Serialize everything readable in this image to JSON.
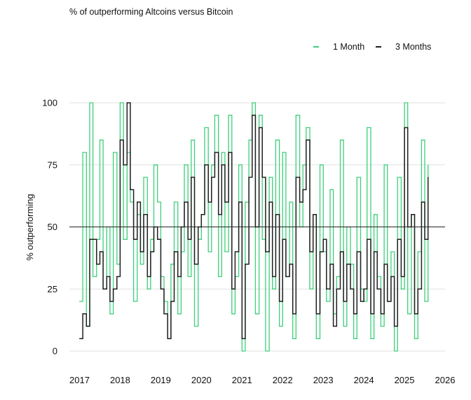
{
  "title": "% of outperforming Altcoins versus Bitcoin",
  "colors": {
    "one_month": "#3ecf7a",
    "three_months": "#1f1f1f",
    "grid": "#e2e2e2",
    "reference": "#222222"
  },
  "chart_data": {
    "type": "line",
    "title": "% of outperforming Altcoins versus Bitcoin",
    "xlabel": "",
    "ylabel": "% outperforming",
    "xlim": [
      2016.75,
      2026.0
    ],
    "ylim": [
      0,
      100
    ],
    "x_ticks": [
      2017,
      2018,
      2019,
      2020,
      2021,
      2022,
      2023,
      2024,
      2025,
      2026
    ],
    "y_ticks": [
      0,
      25,
      50,
      75,
      100
    ],
    "reference_line_y": 50,
    "grid": "horizontal",
    "legend_position": "top-right",
    "series": [
      {
        "name": "1 Month",
        "color": "#3ecf7a",
        "x": [
          2017.0,
          2017.08,
          2017.17,
          2017.25,
          2017.33,
          2017.42,
          2017.5,
          2017.58,
          2017.67,
          2017.75,
          2017.83,
          2017.92,
          2018.0,
          2018.08,
          2018.17,
          2018.25,
          2018.33,
          2018.42,
          2018.5,
          2018.58,
          2018.67,
          2018.75,
          2018.83,
          2018.92,
          2019.0,
          2019.08,
          2019.17,
          2019.25,
          2019.33,
          2019.42,
          2019.5,
          2019.58,
          2019.67,
          2019.75,
          2019.83,
          2019.92,
          2020.0,
          2020.08,
          2020.17,
          2020.25,
          2020.33,
          2020.42,
          2020.5,
          2020.58,
          2020.67,
          2020.75,
          2020.83,
          2020.92,
          2021.0,
          2021.08,
          2021.17,
          2021.25,
          2021.33,
          2021.42,
          2021.5,
          2021.58,
          2021.67,
          2021.75,
          2021.83,
          2021.92,
          2022.0,
          2022.08,
          2022.17,
          2022.25,
          2022.33,
          2022.42,
          2022.5,
          2022.58,
          2022.67,
          2022.75,
          2022.83,
          2022.92,
          2023.0,
          2023.08,
          2023.17,
          2023.25,
          2023.33,
          2023.42,
          2023.5,
          2023.58,
          2023.67,
          2023.75,
          2023.83,
          2023.92,
          2024.0,
          2024.08,
          2024.17,
          2024.25,
          2024.33,
          2024.42,
          2024.5,
          2024.58,
          2024.67,
          2024.75,
          2024.83,
          2024.92,
          2025.0,
          2025.08,
          2025.17,
          2025.25,
          2025.33,
          2025.42,
          2025.5,
          2025.58
        ],
        "values": [
          20,
          80,
          10,
          100,
          30,
          45,
          85,
          25,
          50,
          15,
          80,
          35,
          100,
          45,
          80,
          60,
          20,
          55,
          35,
          70,
          25,
          45,
          75,
          60,
          30,
          20,
          5,
          35,
          60,
          15,
          40,
          75,
          30,
          85,
          10,
          45,
          55,
          90,
          40,
          75,
          95,
          30,
          80,
          40,
          95,
          15,
          30,
          75,
          0,
          60,
          85,
          100,
          15,
          95,
          45,
          0,
          70,
          25,
          85,
          10,
          80,
          30,
          60,
          5,
          95,
          50,
          75,
          90,
          25,
          55,
          5,
          75,
          40,
          20,
          65,
          15,
          30,
          85,
          10,
          50,
          35,
          5,
          70,
          25,
          20,
          90,
          5,
          55,
          30,
          10,
          75,
          20,
          40,
          0,
          70,
          25,
          100,
          15,
          55,
          5,
          40,
          85,
          20,
          75
        ]
      },
      {
        "name": "3 Months",
        "color": "#1f1f1f",
        "x": [
          2017.0,
          2017.08,
          2017.17,
          2017.25,
          2017.33,
          2017.42,
          2017.5,
          2017.58,
          2017.67,
          2017.75,
          2017.83,
          2017.92,
          2018.0,
          2018.08,
          2018.17,
          2018.25,
          2018.33,
          2018.42,
          2018.5,
          2018.58,
          2018.67,
          2018.75,
          2018.83,
          2018.92,
          2019.0,
          2019.08,
          2019.17,
          2019.25,
          2019.33,
          2019.42,
          2019.5,
          2019.58,
          2019.67,
          2019.75,
          2019.83,
          2019.92,
          2020.0,
          2020.08,
          2020.17,
          2020.25,
          2020.33,
          2020.42,
          2020.5,
          2020.58,
          2020.67,
          2020.75,
          2020.83,
          2020.92,
          2021.0,
          2021.08,
          2021.17,
          2021.25,
          2021.33,
          2021.42,
          2021.5,
          2021.58,
          2021.67,
          2021.75,
          2021.83,
          2021.92,
          2022.0,
          2022.08,
          2022.17,
          2022.25,
          2022.33,
          2022.42,
          2022.5,
          2022.58,
          2022.67,
          2022.75,
          2022.83,
          2022.92,
          2023.0,
          2023.08,
          2023.17,
          2023.25,
          2023.33,
          2023.42,
          2023.5,
          2023.58,
          2023.67,
          2023.75,
          2023.83,
          2023.92,
          2024.0,
          2024.08,
          2024.17,
          2024.25,
          2024.33,
          2024.42,
          2024.5,
          2024.58,
          2024.67,
          2024.75,
          2024.83,
          2024.92,
          2025.0,
          2025.08,
          2025.17,
          2025.25,
          2025.33,
          2025.42,
          2025.5,
          2025.58
        ],
        "values": [
          5,
          15,
          10,
          45,
          45,
          35,
          40,
          25,
          30,
          20,
          25,
          30,
          85,
          75,
          100,
          65,
          45,
          60,
          40,
          55,
          30,
          40,
          50,
          45,
          25,
          15,
          5,
          20,
          40,
          30,
          50,
          60,
          45,
          70,
          35,
          50,
          55,
          75,
          60,
          70,
          80,
          55,
          75,
          60,
          80,
          25,
          40,
          60,
          5,
          35,
          70,
          95,
          50,
          90,
          70,
          40,
          60,
          30,
          55,
          20,
          45,
          30,
          35,
          15,
          70,
          60,
          65,
          85,
          40,
          55,
          15,
          40,
          45,
          25,
          35,
          10,
          25,
          40,
          20,
          35,
          25,
          15,
          40,
          20,
          25,
          45,
          15,
          40,
          25,
          15,
          35,
          20,
          30,
          10,
          45,
          30,
          90,
          50,
          55,
          15,
          25,
          60,
          45,
          70
        ]
      }
    ]
  }
}
